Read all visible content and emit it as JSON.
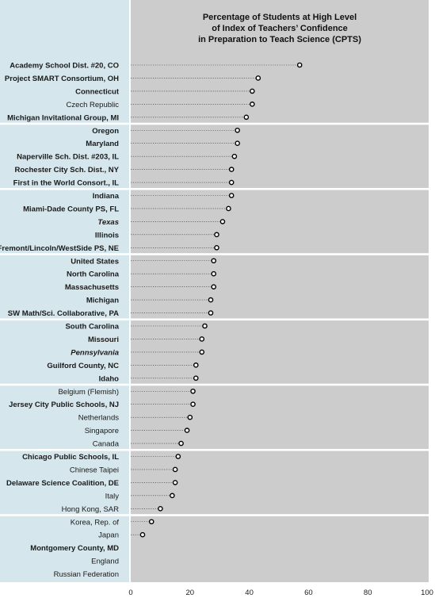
{
  "chart_data": {
    "type": "scatter",
    "title_lines": [
      "Percentage of Students at High Level",
      "of Index of Teachers’ Confidence",
      "in Preparation to Teach Science (CPTS)"
    ],
    "xlim": [
      0,
      100
    ],
    "xticks": [
      "0",
      "20",
      "40",
      "60",
      "80",
      "100"
    ],
    "xtick_values": [
      0,
      20,
      40,
      60,
      80,
      100
    ],
    "grid": false,
    "categories": [
      {
        "label": "Academy School Dist. #20, CO",
        "value": 57,
        "style": "bold"
      },
      {
        "label": "Project SMART Consortium, OH",
        "value": 43,
        "style": "bold"
      },
      {
        "label": "Connecticut",
        "value": 41,
        "style": "bold"
      },
      {
        "label": "Czech Republic",
        "value": 41,
        "style": "normal"
      },
      {
        "label": "Michigan Invitational Group, MI",
        "value": 39,
        "style": "bold"
      },
      {
        "label": "Oregon",
        "value": 36,
        "style": "bold"
      },
      {
        "label": "Maryland",
        "value": 36,
        "style": "bold"
      },
      {
        "label": "Naperville Sch. Dist. #203, IL",
        "value": 35,
        "style": "bold"
      },
      {
        "label": "Rochester City Sch. Dist., NY",
        "value": 34,
        "style": "bold"
      },
      {
        "label": "First in the World Consort., IL",
        "value": 34,
        "style": "bold"
      },
      {
        "label": "Indiana",
        "value": 34,
        "style": "bold"
      },
      {
        "label": "Miami-Dade County PS, FL",
        "value": 33,
        "style": "bold"
      },
      {
        "label": "Texas",
        "value": 31,
        "style": "bold-italic"
      },
      {
        "label": "Illinois",
        "value": 29,
        "style": "bold"
      },
      {
        "label": "Fremont/Lincoln/WestSide PS, NE",
        "value": 29,
        "style": "bold"
      },
      {
        "label": "United States",
        "value": 28,
        "style": "bold"
      },
      {
        "label": "North Carolina",
        "value": 28,
        "style": "bold"
      },
      {
        "label": "Massachusetts",
        "value": 28,
        "style": "bold"
      },
      {
        "label": "Michigan",
        "value": 27,
        "style": "bold"
      },
      {
        "label": "SW Math/Sci. Collaborative, PA",
        "value": 27,
        "style": "bold"
      },
      {
        "label": "South Carolina",
        "value": 25,
        "style": "bold"
      },
      {
        "label": "Missouri",
        "value": 24,
        "style": "bold"
      },
      {
        "label": "Pennsylvania",
        "value": 24,
        "style": "bold-italic"
      },
      {
        "label": "Guilford County, NC",
        "value": 22,
        "style": "bold"
      },
      {
        "label": "Idaho",
        "value": 22,
        "style": "bold"
      },
      {
        "label": "Belgium (Flemish)",
        "value": 21,
        "style": "normal"
      },
      {
        "label": "Jersey City Public Schools, NJ",
        "value": 21,
        "style": "bold"
      },
      {
        "label": "Netherlands",
        "value": 20,
        "style": "normal"
      },
      {
        "label": "Singapore",
        "value": 19,
        "style": "normal"
      },
      {
        "label": "Canada",
        "value": 17,
        "style": "normal"
      },
      {
        "label": "Chicago Public Schools, IL",
        "value": 16,
        "style": "bold"
      },
      {
        "label": "Chinese Taipei",
        "value": 15,
        "style": "normal"
      },
      {
        "label": "Delaware Science Coalition, DE",
        "value": 15,
        "style": "bold"
      },
      {
        "label": "Italy",
        "value": 14,
        "style": "normal"
      },
      {
        "label": "Hong Kong, SAR",
        "value": 10,
        "style": "normal"
      },
      {
        "label": "Korea, Rep. of",
        "value": 7,
        "style": "normal"
      },
      {
        "label": "Japan",
        "value": 4,
        "style": "normal"
      },
      {
        "label": "Montgomery County, MD",
        "value": null,
        "style": "bold"
      },
      {
        "label": "England",
        "value": null,
        "style": "normal"
      },
      {
        "label": "Russian Federation",
        "value": null,
        "style": "normal"
      }
    ],
    "colors": {
      "label_panel": "#d5e6ec",
      "plot_area": "#cccccc",
      "separator": "#ffffff",
      "marker_fill": "#ffffff",
      "marker_stroke": "#000000",
      "leader": "#333333"
    }
  }
}
